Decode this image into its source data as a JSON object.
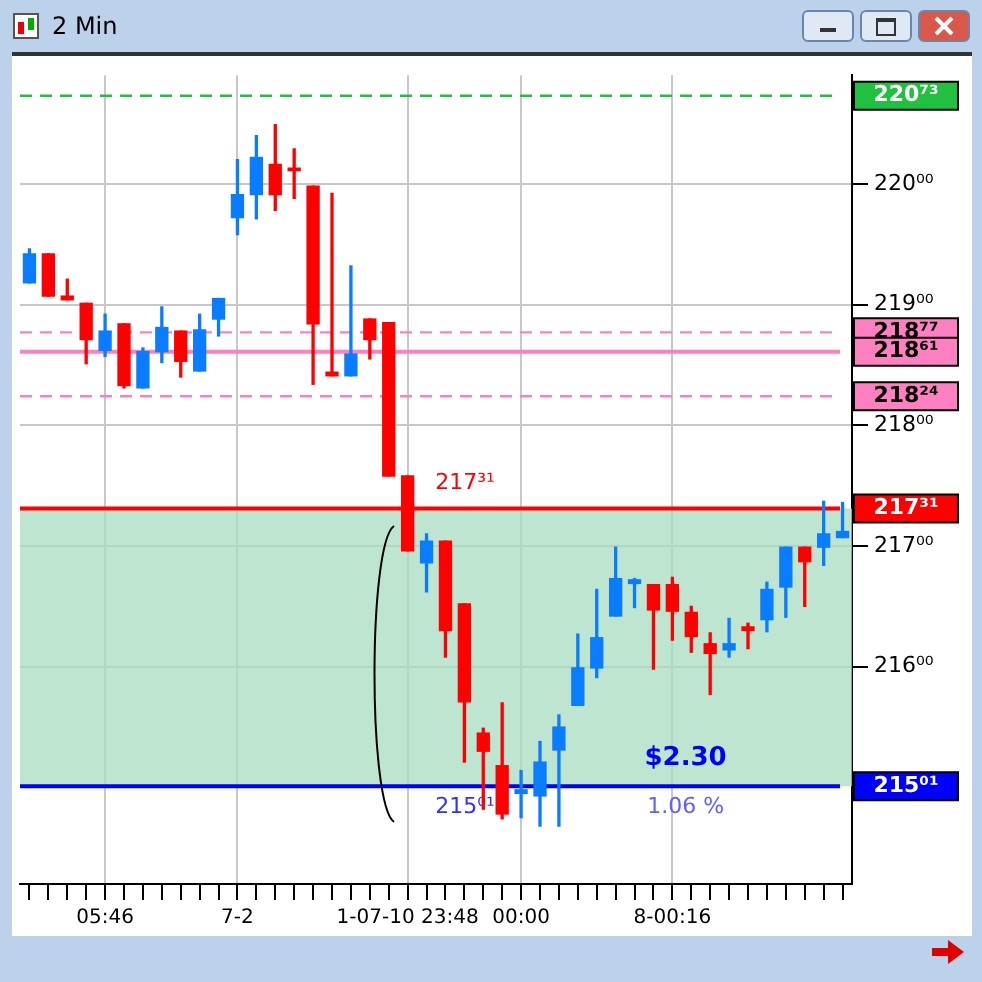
{
  "chart_data": {
    "type": "candlestick",
    "title": "2 Min",
    "categories": [
      null,
      null,
      null,
      null,
      "05:46",
      null,
      null,
      null,
      null,
      null,
      null,
      "7-2",
      null,
      null,
      null,
      null,
      null,
      null,
      null,
      null,
      "1-07-10 23:48",
      null,
      null,
      null,
      null,
      null,
      "00:00",
      null,
      null,
      null,
      null,
      null,
      null,
      null,
      "8-00:16",
      null,
      null,
      null,
      null,
      null,
      null,
      null,
      null,
      null
    ],
    "ohlc": [
      [
        219.18,
        219.46,
        219.18,
        219.42
      ],
      [
        219.42,
        219.42,
        219.07,
        219.07
      ],
      [
        219.07,
        219.21,
        219.04,
        219.04
      ],
      [
        219.01,
        219.01,
        218.51,
        218.71
      ],
      [
        218.62,
        218.92,
        218.57,
        218.78
      ],
      [
        218.84,
        218.84,
        218.31,
        218.33
      ],
      [
        218.31,
        218.64,
        218.31,
        218.61
      ],
      [
        218.61,
        218.98,
        218.52,
        218.81
      ],
      [
        218.78,
        218.78,
        218.4,
        218.53
      ],
      [
        218.45,
        218.92,
        218.45,
        218.79
      ],
      [
        218.88,
        219.05,
        218.74,
        219.05
      ],
      [
        219.72,
        220.2,
        219.58,
        219.91
      ],
      [
        219.91,
        220.4,
        219.71,
        220.22
      ],
      [
        220.16,
        220.49,
        219.78,
        219.91
      ],
      [
        220.13,
        220.29,
        219.88,
        220.11
      ],
      [
        219.98,
        219.98,
        218.34,
        218.84
      ],
      [
        218.44,
        219.92,
        218.41,
        218.41
      ],
      [
        218.41,
        219.32,
        218.41,
        218.59
      ],
      [
        218.88,
        218.88,
        218.55,
        218.71
      ],
      [
        218.85,
        218.85,
        217.58,
        217.58
      ],
      [
        217.58,
        217.58,
        216.96,
        216.96
      ],
      [
        216.86,
        217.1,
        216.62,
        217.04
      ],
      [
        217.04,
        217.04,
        216.08,
        216.3
      ],
      [
        216.52,
        216.52,
        215.21,
        215.71
      ],
      [
        215.45,
        215.49,
        214.82,
        215.3
      ],
      [
        215.18,
        215.7,
        214.74,
        214.78
      ],
      [
        214.95,
        215.14,
        214.75,
        214.98
      ],
      [
        214.93,
        215.38,
        214.68,
        215.21
      ],
      [
        215.31,
        215.6,
        214.68,
        215.5
      ],
      [
        215.68,
        216.27,
        215.68,
        215.99
      ],
      [
        215.99,
        216.64,
        215.91,
        216.24
      ],
      [
        216.42,
        216.99,
        216.42,
        216.73
      ],
      [
        216.69,
        216.73,
        216.49,
        216.72
      ],
      [
        216.68,
        216.68,
        215.98,
        216.47
      ],
      [
        216.68,
        216.74,
        216.22,
        216.46
      ],
      [
        216.45,
        216.5,
        216.12,
        216.25
      ],
      [
        216.19,
        216.28,
        215.77,
        216.11
      ],
      [
        216.14,
        216.4,
        216.08,
        216.19
      ],
      [
        216.33,
        216.36,
        216.15,
        216.3
      ],
      [
        216.39,
        216.7,
        216.29,
        216.64
      ],
      [
        216.66,
        216.99,
        216.41,
        216.99
      ],
      [
        216.99,
        216.99,
        216.5,
        216.87
      ],
      [
        216.99,
        217.37,
        216.84,
        217.1
      ],
      [
        217.07,
        217.36,
        217.07,
        217.12
      ]
    ],
    "colors": [
      "#0a7cff",
      "#ff0000",
      "#ff0000",
      "#ff0000",
      "#0a7cff",
      "#ff0000",
      "#0a7cff",
      "#0a7cff",
      "#ff0000",
      "#0a7cff",
      "#0a7cff",
      "#0a7cff",
      "#0a7cff",
      "#ff0000",
      "#ff0000",
      "#ff0000",
      "#ff0000",
      "#0a7cff",
      "#ff0000",
      "#ff0000",
      "#ff0000",
      "#0a7cff",
      "#ff0000",
      "#ff0000",
      "#ff0000",
      "#ff0000",
      "#0a7cff",
      "#0a7cff",
      "#0a7cff",
      "#0a7cff",
      "#0a7cff",
      "#0a7cff",
      "#0a7cff",
      "#ff0000",
      "#ff0000",
      "#ff0000",
      "#ff0000",
      "#0a7cff",
      "#ff0000",
      "#0a7cff",
      "#0a7cff",
      "#ff0000",
      "#0a7cff",
      "#0a7cff"
    ],
    "ylim": [
      214.2,
      220.9
    ],
    "yticks": [
      {
        "value": 216,
        "label": "216⁰⁰"
      },
      {
        "value": 217,
        "label": "217⁰⁰"
      },
      {
        "value": 218,
        "label": "218⁰⁰"
      },
      {
        "value": 219,
        "label": "219⁰⁰"
      },
      {
        "value": 220,
        "label": "220⁰⁰"
      }
    ],
    "grid": true,
    "legend": false,
    "ref_lines": [
      {
        "axis": "y",
        "value": 220.73,
        "label": "220⁷³",
        "color": "#22c040",
        "line_style": "dashed"
      },
      {
        "axis": "y",
        "value": 218.77,
        "label": "218⁷⁷",
        "color": "#ff80c0",
        "line_style": "dashed"
      },
      {
        "axis": "y",
        "value": 218.61,
        "label": "218⁶¹",
        "color": "#ff80c0",
        "line_style": "solid"
      },
      {
        "axis": "y",
        "value": 218.24,
        "label": "218²⁴",
        "color": "#ff80c0",
        "line_style": "dashed"
      },
      {
        "axis": "y",
        "value": 217.31,
        "label": "217³¹",
        "color": "#ff0000",
        "line_style": "solid"
      },
      {
        "axis": "y",
        "value": 215.01,
        "label": "215⁰¹",
        "color": "#0000ff",
        "line_style": "solid"
      }
    ],
    "bands": [
      {
        "axis": "y",
        "from": 215.01,
        "to": 217.31,
        "color": "#a8dcc0"
      }
    ],
    "annotations": [
      "217³¹",
      "$2.30",
      "215⁰¹",
      "1.06 %"
    ]
  }
}
